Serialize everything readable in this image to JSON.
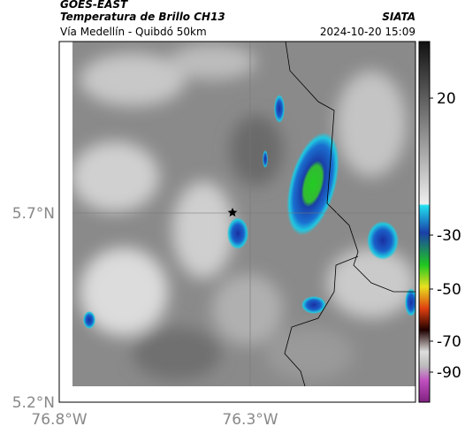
{
  "header": {
    "title": "GOES-EAST",
    "subtitle": "Temperatura de Brillo CH13",
    "location": "Vía Medellín - Quibdó 50km",
    "source": "SIATA",
    "datetime": "2024-10-20 15:09"
  },
  "map": {
    "lat_labels": [
      "5.7°N",
      "5.2°N"
    ],
    "lon_labels": [
      "76.8°W",
      "76.3°W"
    ]
  },
  "colorbar": {
    "labels": [
      "20",
      "-30",
      "-50",
      "-70",
      "-90"
    ]
  }
}
